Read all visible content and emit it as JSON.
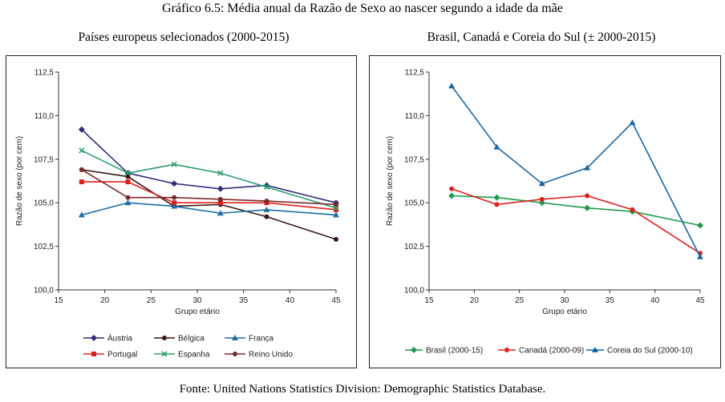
{
  "title": "Gráfico 6.5: Média anual da Razão de Sexo ao nascer segundo a idade da mãe",
  "source": "Fonte: United Nations Statistics Division: Demographic Statistics Database.",
  "chart_data": [
    {
      "type": "line",
      "title": "Países europeus selecionados (2000-2015)",
      "xlabel": "Grupo etário",
      "ylabel": "Razão de sexo (por cem)",
      "xlim": [
        15,
        45
      ],
      "ylim": [
        100,
        112.5
      ],
      "xticks": [
        "15",
        "20",
        "25",
        "30",
        "35",
        "40",
        "45"
      ],
      "yticks": [
        "100,0",
        "102,5",
        "105,0",
        "107,5",
        "110,0",
        "112,5"
      ],
      "grid": false,
      "legend": "bottom",
      "x": [
        17.5,
        22.5,
        27.5,
        32.5,
        37.5,
        45
      ],
      "series": [
        {
          "name": "Áustria",
          "color": "#2e2d7e",
          "marker": "diamond",
          "values": [
            109.2,
            106.7,
            106.1,
            105.8,
            106.0,
            105.0
          ]
        },
        {
          "name": "Bélgica",
          "color": "#3b1515",
          "marker": "circle",
          "values": [
            106.9,
            106.5,
            104.8,
            104.9,
            104.2,
            102.9
          ]
        },
        {
          "name": "França",
          "color": "#1f6ea5",
          "marker": "triangle",
          "values": [
            104.3,
            105.0,
            104.8,
            104.4,
            104.6,
            104.3
          ]
        },
        {
          "name": "Portugal",
          "color": "#e0201b",
          "marker": "square",
          "values": [
            106.2,
            106.2,
            105.0,
            105.0,
            105.0,
            104.6
          ]
        },
        {
          "name": "Espanha",
          "color": "#2aa06a",
          "marker": "star",
          "values": [
            108.0,
            106.7,
            107.2,
            106.7,
            105.9,
            104.7
          ]
        },
        {
          "name": "Reino Unido",
          "color": "#7b2a2a",
          "marker": "circle",
          "values": [
            106.9,
            105.3,
            105.3,
            105.2,
            105.1,
            104.9
          ]
        }
      ]
    },
    {
      "type": "line",
      "title": "Brasil, Canadá e Coreia do Sul (± 2000-2015)",
      "xlabel": "Grupo etário",
      "ylabel": "Razão de sexo (por cem)",
      "xlim": [
        15,
        45
      ],
      "ylim": [
        100,
        112.5
      ],
      "xticks": [
        "15",
        "20",
        "25",
        "30",
        "35",
        "40",
        "45"
      ],
      "yticks": [
        "100,0",
        "102,5",
        "105,0",
        "107,5",
        "110,0",
        "112,5"
      ],
      "grid": false,
      "legend": "bottom",
      "x": [
        17.5,
        22.5,
        27.5,
        32.5,
        37.5,
        45
      ],
      "series": [
        {
          "name": "Brasil (2000-15)",
          "color": "#1f9a4b",
          "marker": "diamond",
          "values": [
            105.4,
            105.3,
            105.0,
            104.7,
            104.5,
            103.7
          ]
        },
        {
          "name": "Canadá (2000-09)",
          "color": "#e0201b",
          "marker": "circle",
          "values": [
            105.8,
            104.9,
            105.2,
            105.4,
            104.6,
            102.1
          ]
        },
        {
          "name": "Coreia do Sul (2000-10)",
          "color": "#1566a8",
          "marker": "triangle",
          "values": [
            111.7,
            108.2,
            106.1,
            107.0,
            109.6,
            101.9
          ]
        }
      ]
    }
  ]
}
